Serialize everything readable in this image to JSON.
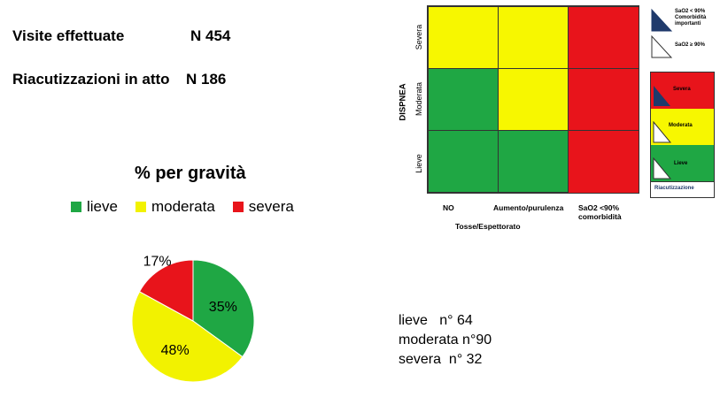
{
  "stats": {
    "visits_label": "Visite effettuate",
    "visits_value": "N 454",
    "relapse_label": "Riacutizzazioni in atto",
    "relapse_value": "N 186"
  },
  "chart_data": {
    "type": "pie",
    "title": "% per gravità",
    "categories": [
      "lieve",
      "moderata",
      "severa"
    ],
    "values": [
      35,
      48,
      17
    ],
    "labels": [
      "35%",
      "48%",
      "17%"
    ],
    "colors": [
      "#1FA744",
      "#F2F200",
      "#E8141B"
    ],
    "counts": [
      {
        "label": "lieve",
        "value": "n° 64",
        "text": "lieve   n° 64"
      },
      {
        "label": "moderata",
        "value": "n°90",
        "text": "moderata n°90"
      },
      {
        "label": "severa",
        "value": "n° 32",
        "text": "severa  n° 32"
      }
    ]
  },
  "matrix": {
    "y_axis_title": "DISPNEA",
    "x_axis_title": "Tosse/Espettorato",
    "rows": [
      "Severa",
      "Moderata",
      "Lieve"
    ],
    "cols": [
      "NO",
      "Aumento/purulenza",
      "SaO2 <90%",
      "comorbidità"
    ],
    "cells": [
      [
        "#F7F700",
        "#F7F700",
        "#E8141B"
      ],
      [
        "#1FA744",
        "#F7F700",
        "#E8141B"
      ],
      [
        "#1FA744",
        "#1FA744",
        "#E8141B"
      ]
    ]
  },
  "key": {
    "sao2_low_l1": "SaO2 < 90%",
    "sao2_low_l2": "Comorbidità",
    "sao2_low_l3": "importanti",
    "sao2_ok": "SaO2 ≥ 90%",
    "severa": "Severa",
    "moderata": "Moderata",
    "lieve": "Lieve",
    "caption": "Riacutizzazione",
    "colors": {
      "red": "#E8141B",
      "yellow": "#F7F700",
      "green": "#1FA744",
      "navy": "#1F3A6B"
    }
  }
}
